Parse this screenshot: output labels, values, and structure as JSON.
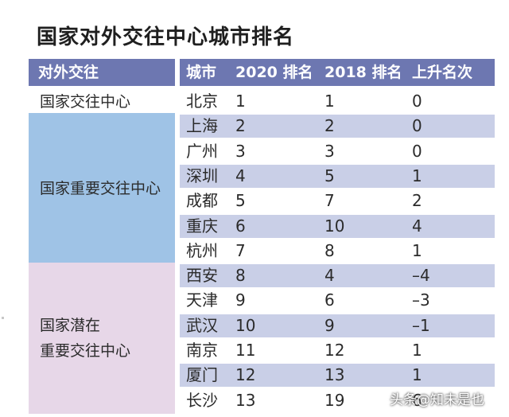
{
  "title": "国家对外交往中心城市排名",
  "header": {
    "category": "对外交往",
    "city": "城市",
    "rank2020": "2020 排名",
    "rank2018": "2018 排名",
    "rise": "上升名次"
  },
  "groups": [
    {
      "label_lines": [
        "国家交往中心"
      ],
      "color": "#ffffff"
    },
    {
      "label_lines": [
        "国家重要交往中心"
      ],
      "color": "#9fc3e6"
    },
    {
      "label_lines": [
        "国家潜在",
        "重要交往中心"
      ],
      "color": "#e7d7e8"
    }
  ],
  "rows": [
    {
      "city": "北京",
      "rank2020": "1",
      "rank2018": "1",
      "rise": "0"
    },
    {
      "city": "上海",
      "rank2020": "2",
      "rank2018": "2",
      "rise": "0"
    },
    {
      "city": "广州",
      "rank2020": "3",
      "rank2018": "3",
      "rise": "0"
    },
    {
      "city": "深圳",
      "rank2020": "4",
      "rank2018": "5",
      "rise": "1"
    },
    {
      "city": "成都",
      "rank2020": "5",
      "rank2018": "7",
      "rise": "2"
    },
    {
      "city": "重庆",
      "rank2020": "6",
      "rank2018": "10",
      "rise": "4"
    },
    {
      "city": "杭州",
      "rank2020": "7",
      "rank2018": "8",
      "rise": "1"
    },
    {
      "city": "西安",
      "rank2020": "8",
      "rank2018": "4",
      "rise": "–4"
    },
    {
      "city": "天津",
      "rank2020": "9",
      "rank2018": "6",
      "rise": "–3"
    },
    {
      "city": "武汉",
      "rank2020": "10",
      "rank2018": "9",
      "rise": "–1"
    },
    {
      "city": "南京",
      "rank2020": "11",
      "rank2018": "12",
      "rise": "1"
    },
    {
      "city": "厦门",
      "rank2020": "12",
      "rank2018": "13",
      "rise": "1"
    },
    {
      "city": "长沙",
      "rank2020": "13",
      "rank2018": "19",
      "rise": "6"
    }
  ],
  "watermark": "头条@知未是也"
}
